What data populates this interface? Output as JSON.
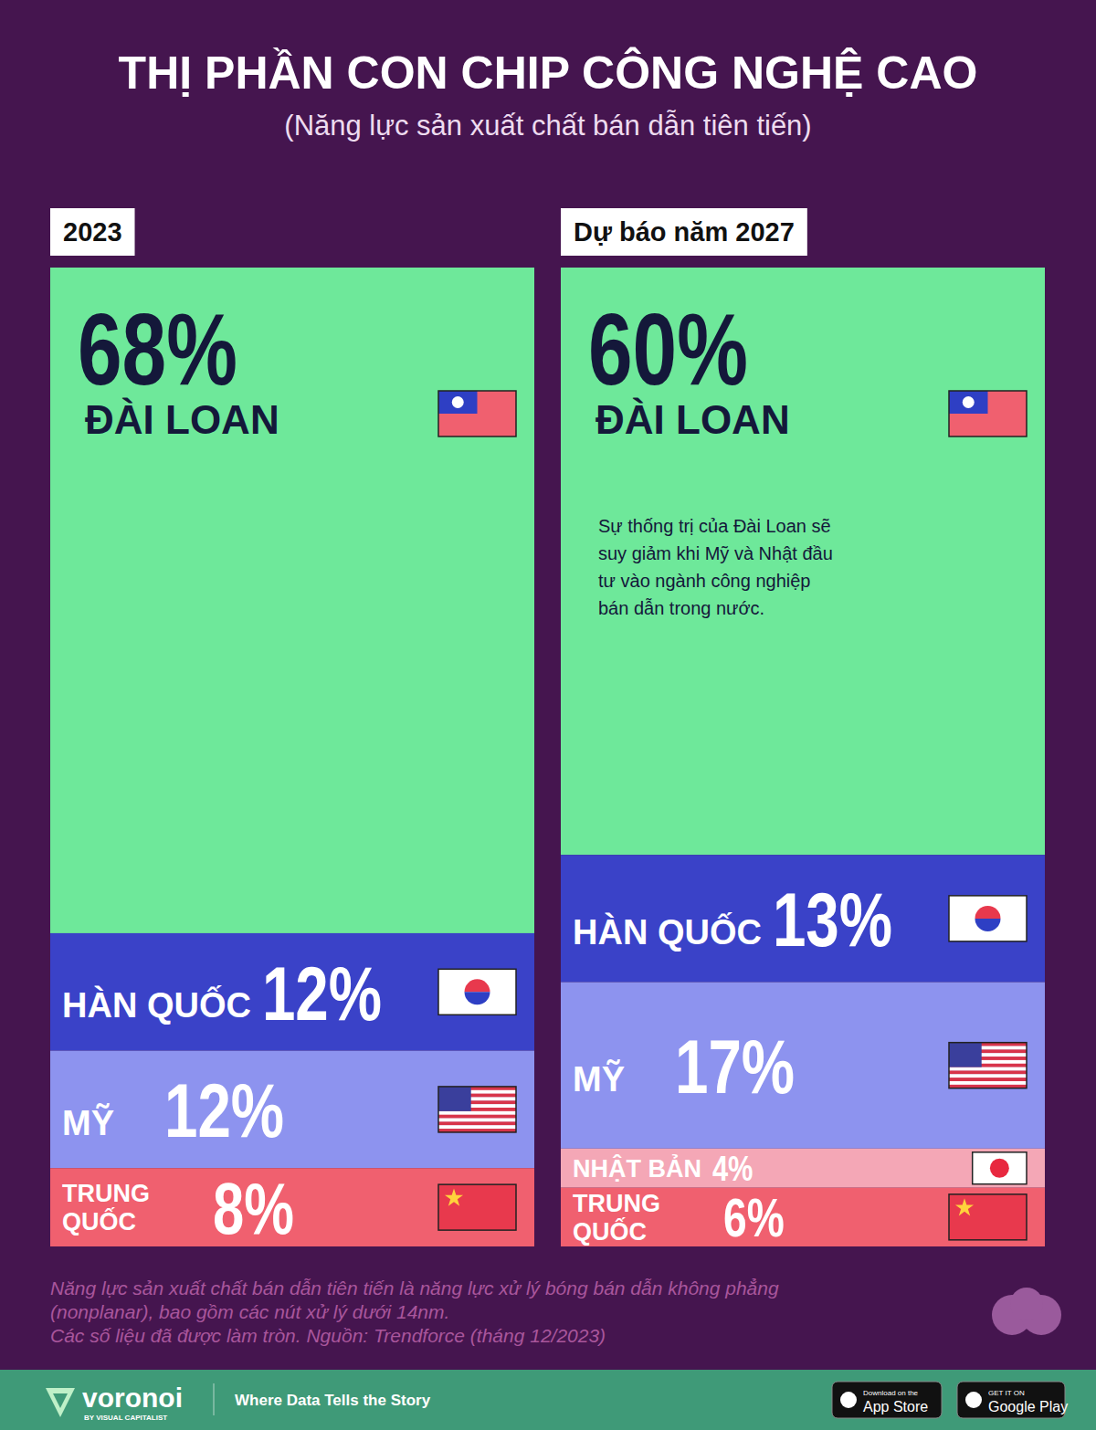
{
  "chart_data": {
    "type": "bar",
    "title": "THỊ PHẦN CON CHIP CÔNG NGHỆ CAO",
    "subtitle": "(Năng lực sản xuất chất bán dẫn tiên tiến)",
    "categories": [
      "2023",
      "Dự báo năm 2027"
    ],
    "series": [
      {
        "name": "ĐÀI LOAN",
        "color": "#6ee89a",
        "values": [
          68,
          60
        ],
        "value_labels": [
          "68%",
          "60%"
        ]
      },
      {
        "name": "HÀN QUỐC",
        "color": "#3a42c8",
        "values": [
          12,
          13
        ],
        "value_labels": [
          "12%",
          "13%"
        ]
      },
      {
        "name": "MỸ",
        "color": "#8d93ef",
        "values": [
          12,
          17
        ],
        "value_labels": [
          "12%",
          "17%"
        ]
      },
      {
        "name": "NHẬT BẢN",
        "color": "#f4a7b6",
        "values": [
          null,
          4
        ],
        "value_labels": [
          null,
          "4%"
        ]
      },
      {
        "name": "TRUNG QUỐC",
        "color": "#f0606f",
        "values": [
          8,
          6
        ],
        "value_labels": [
          "8%",
          "6%"
        ]
      }
    ],
    "ylim": [
      0,
      100
    ],
    "stacked": true,
    "data_labels": true,
    "tick_labels": false,
    "grid": false,
    "annotation": [
      "Sự thống trị của Đài Loan sẽ",
      "suy giảm khi Mỹ và Nhật đầu",
      "tư vào ngành công nghiệp",
      "bán dẫn trong nước."
    ],
    "footnotes": [
      "Năng lực sản xuất chất bán dẫn tiên tiến là năng lực xử lý bóng bán dẫn không phẳng",
      "(nonplanar), bao gồm các nút xử lý dưới 14nm.",
      "Các số liệu đã được làm tròn. Nguồn: Trendforce (tháng 12/2023)"
    ]
  },
  "footer": {
    "brand": "voronoi",
    "brand_sub": "BY VISUAL CAPITALIST",
    "tagline": "Where Data Tells the Story",
    "app_store": [
      "Download on the",
      "App Store"
    ],
    "google_play": [
      "GET IT ON",
      "Google Play"
    ]
  }
}
